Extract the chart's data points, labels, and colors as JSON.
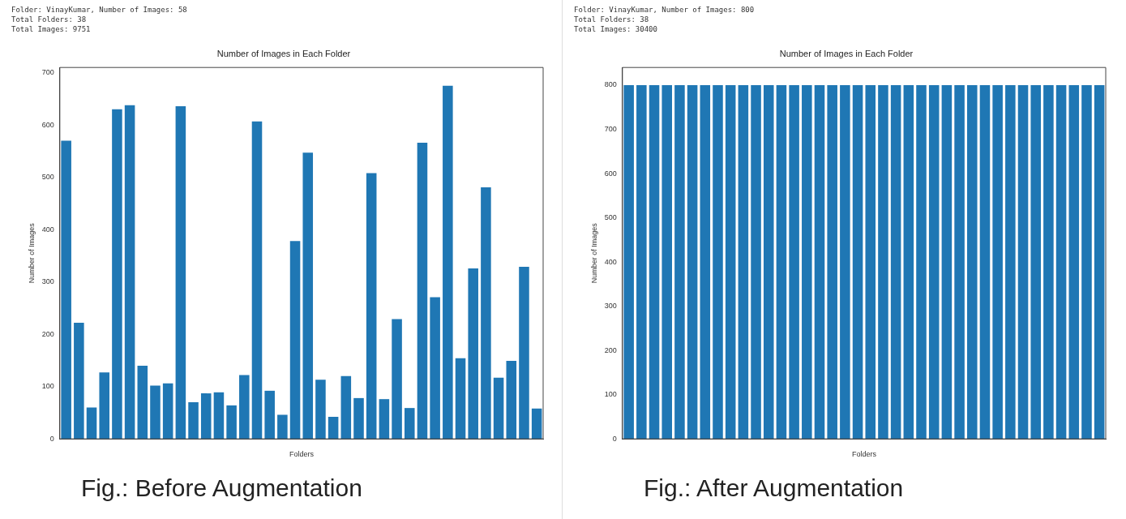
{
  "chart_data": [
    {
      "type": "bar",
      "title": "Number of Images in Each Folder",
      "xlabel": "Folders",
      "ylabel": "Number of Images",
      "categories": [
        null,
        null,
        null,
        null,
        null,
        null,
        null,
        null,
        null,
        null,
        null,
        null,
        null,
        null,
        null,
        null,
        null,
        null,
        null,
        null,
        null,
        null,
        null,
        null,
        null,
        null,
        null,
        null,
        null,
        null,
        null,
        null,
        null,
        null,
        null,
        null,
        null,
        null
      ],
      "values": [
        570,
        222,
        60,
        127,
        630,
        638,
        140,
        102,
        106,
        636,
        70,
        87,
        89,
        64,
        122,
        607,
        92,
        46,
        378,
        547,
        113,
        42,
        120,
        78,
        508,
        76,
        229,
        59,
        566,
        271,
        675,
        154,
        326,
        481,
        117,
        149,
        329,
        58
      ],
      "color": "#1f77b4",
      "ylim": [
        0,
        710
      ],
      "yticks": [
        0,
        100,
        200,
        300,
        400,
        500,
        600,
        700
      ],
      "grid": false,
      "legend": false,
      "annotations": [
        "Folder: VinayKumar, Number of Images: 58",
        "Total Folders: 38",
        "Total Images: 9751",
        "Fig.: Before Augmentation"
      ]
    },
    {
      "type": "bar",
      "title": "Number of Images in Each Folder",
      "xlabel": "Folders",
      "ylabel": "Number of Images",
      "categories": [
        null,
        null,
        null,
        null,
        null,
        null,
        null,
        null,
        null,
        null,
        null,
        null,
        null,
        null,
        null,
        null,
        null,
        null,
        null,
        null,
        null,
        null,
        null,
        null,
        null,
        null,
        null,
        null,
        null,
        null,
        null,
        null,
        null,
        null,
        null,
        null,
        null,
        null
      ],
      "values": [
        800,
        800,
        800,
        800,
        800,
        800,
        800,
        800,
        800,
        800,
        800,
        800,
        800,
        800,
        800,
        800,
        800,
        800,
        800,
        800,
        800,
        800,
        800,
        800,
        800,
        800,
        800,
        800,
        800,
        800,
        800,
        800,
        800,
        800,
        800,
        800,
        800,
        800
      ],
      "color": "#1f77b4",
      "ylim": [
        0,
        840
      ],
      "yticks": [
        0,
        100,
        200,
        300,
        400,
        500,
        600,
        700,
        800
      ],
      "grid": false,
      "legend": false,
      "annotations": [
        "Folder: VinayKumar, Number of Images: 800",
        "Total Folders: 38",
        "Total Images: 30400",
        "Fig.: After Augmentation"
      ]
    }
  ]
}
